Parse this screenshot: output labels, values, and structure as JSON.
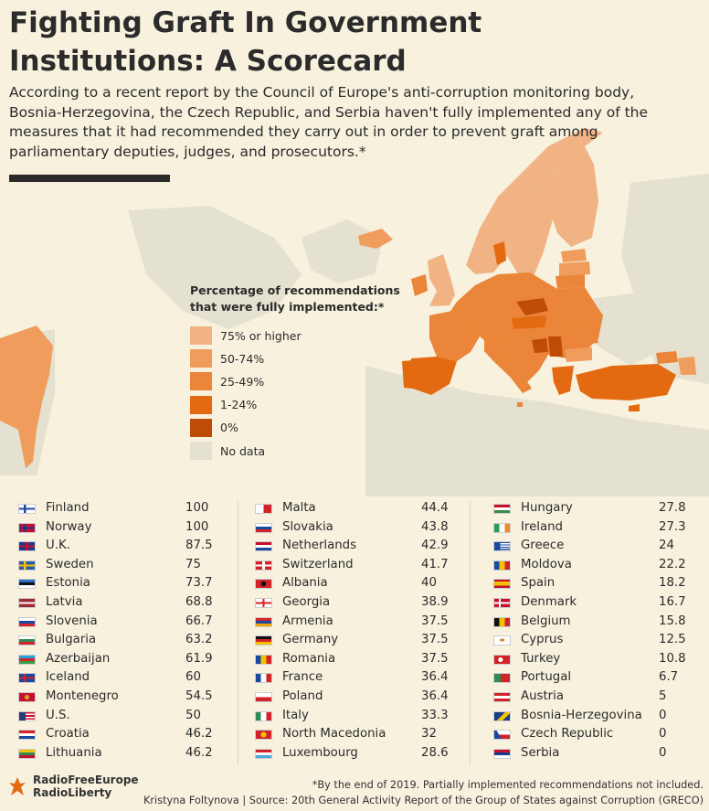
{
  "header": {
    "title": "Fighting Graft In Government Institutions: A Scorecard",
    "subtitle": "According to a recent report by the Council of Europe's anti-corruption monitoring body, Bosnia-Herzegovina, the Czech Republic, and Serbia haven't fully implemented any of the measures that it had recommended they carry out in order to prevent graft among parliamentary deputies, judges, and prosecutors.*"
  },
  "legend": {
    "title": "Percentage of recommendations that were fully implemented:*",
    "items": [
      {
        "label": "75% or higher",
        "color": "#f2b384"
      },
      {
        "label": "50-74%",
        "color": "#ef9c5c"
      },
      {
        "label": "25-49%",
        "color": "#ea8539"
      },
      {
        "label": "1-24%",
        "color": "#e46a12"
      },
      {
        "label": "0%",
        "color": "#bf4c06"
      },
      {
        "label": "No data",
        "color": "#e4e1d0"
      }
    ]
  },
  "colors": {
    "background": "#f7f1de",
    "sea": "#f7f1de",
    "land_no_data": "#e4e1d0",
    "title_text": "#2b2b2b"
  },
  "table": {
    "columns": [
      [
        {
          "country": "Finland",
          "value": "100",
          "flag": "finland-flag-icon"
        },
        {
          "country": "Norway",
          "value": "100",
          "flag": "norway-flag-icon"
        },
        {
          "country": "U.K.",
          "value": "87.5",
          "flag": "uk-flag-icon"
        },
        {
          "country": "Sweden",
          "value": "75",
          "flag": "sweden-flag-icon"
        },
        {
          "country": "Estonia",
          "value": "73.7",
          "flag": "estonia-flag-icon"
        },
        {
          "country": "Latvia",
          "value": "68.8",
          "flag": "latvia-flag-icon"
        },
        {
          "country": "Slovenia",
          "value": "66.7",
          "flag": "slovenia-flag-icon"
        },
        {
          "country": "Bulgaria",
          "value": "63.2",
          "flag": "bulgaria-flag-icon"
        },
        {
          "country": "Azerbaijan",
          "value": "61.9",
          "flag": "azerbaijan-flag-icon"
        },
        {
          "country": "Iceland",
          "value": "60",
          "flag": "iceland-flag-icon"
        },
        {
          "country": "Montenegro",
          "value": "54.5",
          "flag": "montenegro-flag-icon"
        },
        {
          "country": "U.S.",
          "value": "50",
          "flag": "us-flag-icon"
        },
        {
          "country": "Croatia",
          "value": "46.2",
          "flag": "croatia-flag-icon"
        },
        {
          "country": "Lithuania",
          "value": "46.2",
          "flag": "lithuania-flag-icon"
        }
      ],
      [
        {
          "country": "Malta",
          "value": "44.4",
          "flag": "malta-flag-icon"
        },
        {
          "country": "Slovakia",
          "value": "43.8",
          "flag": "slovakia-flag-icon"
        },
        {
          "country": "Netherlands",
          "value": "42.9",
          "flag": "netherlands-flag-icon"
        },
        {
          "country": "Switzerland",
          "value": "41.7",
          "flag": "switzerland-flag-icon"
        },
        {
          "country": "Albania",
          "value": "40",
          "flag": "albania-flag-icon"
        },
        {
          "country": "Georgia",
          "value": "38.9",
          "flag": "georgia-flag-icon"
        },
        {
          "country": "Armenia",
          "value": "37.5",
          "flag": "armenia-flag-icon"
        },
        {
          "country": "Germany",
          "value": "37.5",
          "flag": "germany-flag-icon"
        },
        {
          "country": "Romania",
          "value": "37.5",
          "flag": "romania-flag-icon"
        },
        {
          "country": "France",
          "value": "36.4",
          "flag": "france-flag-icon"
        },
        {
          "country": "Poland",
          "value": "36.4",
          "flag": "poland-flag-icon"
        },
        {
          "country": "Italy",
          "value": "33.3",
          "flag": "italy-flag-icon"
        },
        {
          "country": "North Macedonia",
          "value": "32",
          "flag": "north-macedonia-flag-icon"
        },
        {
          "country": "Luxembourg",
          "value": "28.6",
          "flag": "luxembourg-flag-icon"
        }
      ],
      [
        {
          "country": "Hungary",
          "value": "27.8",
          "flag": "hungary-flag-icon"
        },
        {
          "country": "Ireland",
          "value": "27.3",
          "flag": "ireland-flag-icon"
        },
        {
          "country": "Greece",
          "value": "24",
          "flag": "greece-flag-icon"
        },
        {
          "country": "Moldova",
          "value": "22.2",
          "flag": "moldova-flag-icon"
        },
        {
          "country": "Spain",
          "value": "18.2",
          "flag": "spain-flag-icon"
        },
        {
          "country": "Denmark",
          "value": "16.7",
          "flag": "denmark-flag-icon"
        },
        {
          "country": "Belgium",
          "value": "15.8",
          "flag": "belgium-flag-icon"
        },
        {
          "country": "Cyprus",
          "value": "12.5",
          "flag": "cyprus-flag-icon"
        },
        {
          "country": "Turkey",
          "value": "10.8",
          "flag": "turkey-flag-icon"
        },
        {
          "country": "Portugal",
          "value": "6.7",
          "flag": "portugal-flag-icon"
        },
        {
          "country": "Austria",
          "value": "5",
          "flag": "austria-flag-icon"
        },
        {
          "country": "Bosnia-Herzegovina",
          "value": "0",
          "flag": "bosnia-herzegovina-flag-icon"
        },
        {
          "country": "Czech Republic",
          "value": "0",
          "flag": "czech-republic-flag-icon"
        },
        {
          "country": "Serbia",
          "value": "0",
          "flag": "serbia-flag-icon"
        }
      ]
    ]
  },
  "footer": {
    "logo_line1": "RadioFreeEurope",
    "logo_line2": "RadioLiberty",
    "footnote": "*By the end of 2019. Partially implemented recommendations not included.",
    "credit": "Kristyna Foltynova | Source: 20th General Activity Report of the Group of States against Corruption (GRECO)"
  }
}
